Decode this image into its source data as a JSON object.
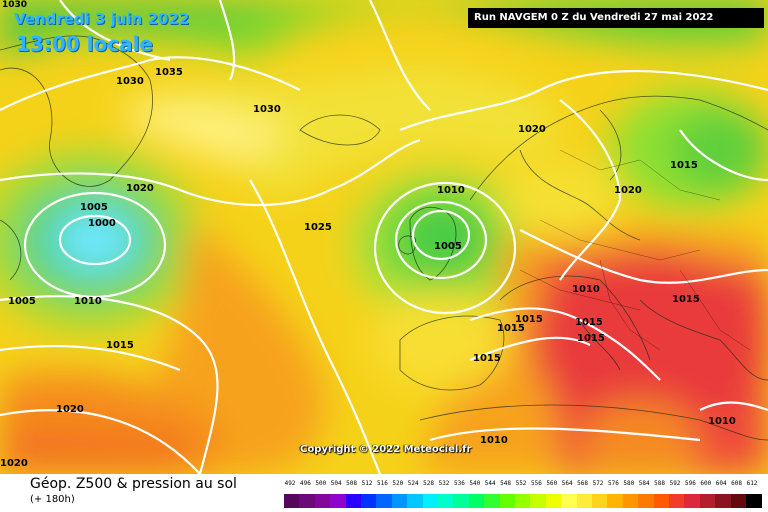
{
  "header": {
    "date": "Vendredi 3 juin 2022",
    "time": "13:00 locale",
    "run": "Run NAVGEM 0 Z du Vendredi 27 mai 2022"
  },
  "copyright": "Copyright © 2022 Meteociel.fr",
  "legend": {
    "title": "Géop. Z500 & pression au sol",
    "subtitle": "(+ 180h)",
    "ticks": [
      "492",
      "496",
      "500",
      "504",
      "508",
      "512",
      "516",
      "520",
      "524",
      "528",
      "532",
      "536",
      "540",
      "544",
      "548",
      "552",
      "556",
      "560",
      "564",
      "568",
      "572",
      "576",
      "580",
      "584",
      "588",
      "592",
      "596",
      "600",
      "604",
      "608",
      "612"
    ],
    "colors": [
      "#55075b",
      "#6d0a79",
      "#84069a",
      "#9004cf",
      "#2a00ff",
      "#0032ff",
      "#0064ff",
      "#0096ff",
      "#00c8ff",
      "#00f0ff",
      "#00ffc8",
      "#00ff96",
      "#00ff64",
      "#32ff32",
      "#64ff00",
      "#96ff00",
      "#c8ff00",
      "#f0ff00",
      "#ffff50",
      "#ffec3a",
      "#ffd21e",
      "#ffb400",
      "#ff9600",
      "#ff7800",
      "#ff5a00",
      "#f03c28",
      "#dc2a3c",
      "#b41e2d",
      "#8c141e",
      "#640a0f",
      "#000000"
    ]
  },
  "isobars": [
    {
      "id": "1030-topleft",
      "text": "1030"
    },
    {
      "id": "1030-a",
      "text": "1030"
    },
    {
      "id": "1035",
      "text": "1035"
    },
    {
      "id": "1030-b",
      "text": "1030"
    },
    {
      "id": "1020-mid",
      "text": "1020"
    },
    {
      "id": "1020-nordic",
      "text": "1020"
    },
    {
      "id": "1015-scand",
      "text": "1015"
    },
    {
      "id": "1020-scand",
      "text": "1020"
    },
    {
      "id": "1010-uk",
      "text": "1010"
    },
    {
      "id": "1005-left",
      "text": "1005"
    },
    {
      "id": "1000-left",
      "text": "1000"
    },
    {
      "id": "1025",
      "text": "1025"
    },
    {
      "id": "1005-uk",
      "text": "1005"
    },
    {
      "id": "1005-far",
      "text": "1005"
    },
    {
      "id": "1010-left",
      "text": "1010"
    },
    {
      "id": "1010-eu",
      "text": "1010"
    },
    {
      "id": "1015-eu",
      "text": "1015"
    },
    {
      "id": "1015-left",
      "text": "1015"
    },
    {
      "id": "1015-fr1",
      "text": "1015"
    },
    {
      "id": "1015-fr2",
      "text": "1015"
    },
    {
      "id": "1015-it1",
      "text": "1015"
    },
    {
      "id": "1015-it2",
      "text": "1015"
    },
    {
      "id": "1015-es",
      "text": "1015"
    },
    {
      "id": "1020-sw",
      "text": "1020"
    },
    {
      "id": "1010-east",
      "text": "1010"
    },
    {
      "id": "1010-south",
      "text": "1010"
    },
    {
      "id": "1020-corner",
      "text": "1020"
    }
  ]
}
